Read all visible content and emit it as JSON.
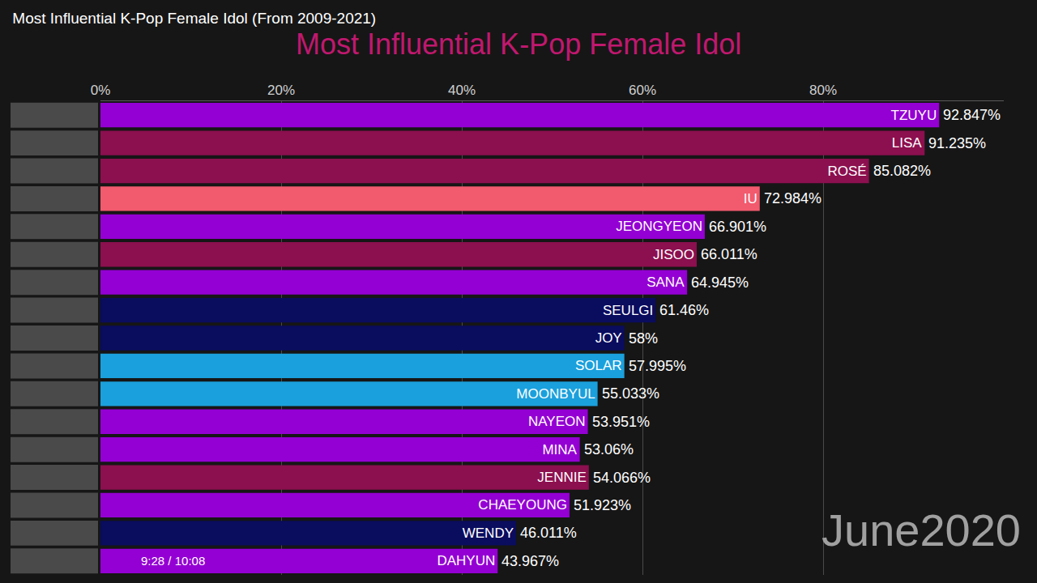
{
  "chart_data": {
    "type": "bar",
    "orientation": "horizontal",
    "title": "Most Influential K-Pop Female Idol (From 2009-2021)",
    "subtitle": "Most Influential K-Pop Female Idol",
    "annotations": [
      "June2020",
      "9:28 / 10:08"
    ],
    "categories": [
      "TZUYU",
      "LISA",
      "ROSÉ",
      "IU",
      "JEONGYEON",
      "JISOO",
      "SANA",
      "SEULGI",
      "JOY",
      "SOLAR",
      "MOONBYUL",
      "NAYEON",
      "MINA",
      "JENNIE",
      "CHAEYOUNG",
      "WENDY",
      "DAHYUN"
    ],
    "values": [
      92.847,
      91.235,
      85.082,
      72.984,
      66.901,
      66.011,
      64.945,
      61.46,
      58,
      57.995,
      55.033,
      53.951,
      53.06,
      54.066,
      51.923,
      46.011,
      43.967
    ],
    "value_labels": [
      "92.847%",
      "91.235%",
      "85.082%",
      "72.984%",
      "66.901%",
      "66.011%",
      "64.945%",
      "61.46%",
      "58%",
      "57.995%",
      "55.033%",
      "53.951%",
      "53.06%",
      "54.066%",
      "51.923%",
      "46.011%",
      "43.967%"
    ],
    "colors": [
      "#9400d3",
      "#8c0f4f",
      "#8c0f4f",
      "#f25a6e",
      "#9400d3",
      "#8c0f4f",
      "#9400d3",
      "#0a0c5e",
      "#0a0c5e",
      "#1aa0dc",
      "#1aa0dc",
      "#9400d3",
      "#9400d3",
      "#8c0f4f",
      "#9400d3",
      "#0a0c5e",
      "#9400d3"
    ],
    "xlim": [
      0,
      100
    ],
    "xticks": [
      {
        "value": 0,
        "label": "0%"
      },
      {
        "value": 20,
        "label": "20%"
      },
      {
        "value": 40,
        "label": "40%"
      },
      {
        "value": 60,
        "label": "60%"
      },
      {
        "value": 80,
        "label": "80%"
      }
    ],
    "grid": true,
    "data_labels": true,
    "tick_labels": "x"
  }
}
